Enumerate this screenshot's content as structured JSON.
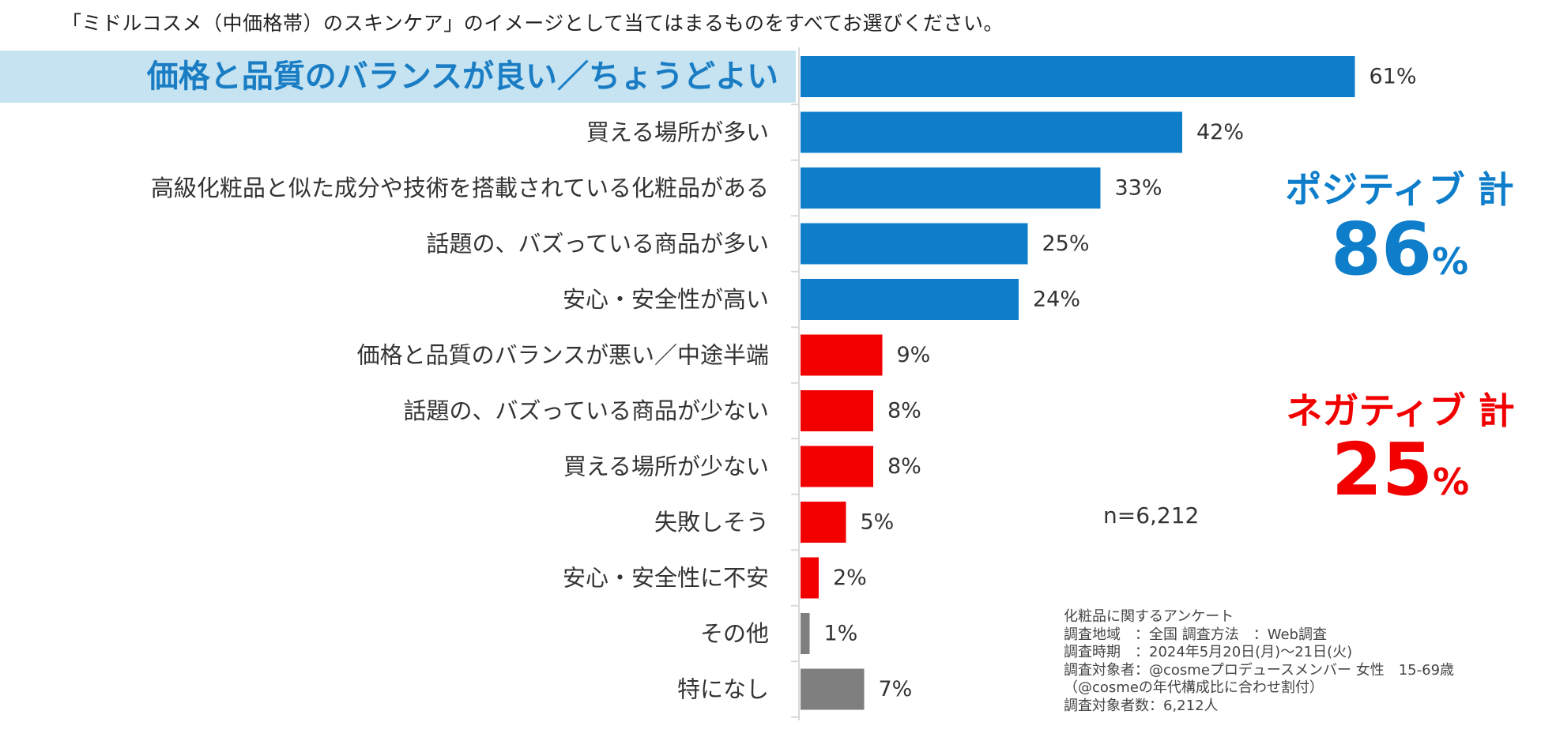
{
  "question": "「ミドルコスメ（中価格帯）のスキンケア」のイメージとして当てはまるものをすべてお選びください。",
  "colors": {
    "positive": "#0E7ECB",
    "negative": "#F20000",
    "neutral": "#7F7F7F",
    "highlight_bg": "#C5E3F1",
    "highlight_text": "#1A7DC4"
  },
  "chart_data": {
    "type": "bar",
    "orientation": "horizontal",
    "title": "「ミドルコスメ（中価格帯）のスキンケア」のイメージとして当てはまるものをすべてお選びください。",
    "unit": "%",
    "xlim": [
      0,
      61
    ],
    "categories": [
      "価格と品質のバランスが良い／ちょうどよい",
      "買える場所が多い",
      "高級化粧品と似た成分や技術を搭載されている化粧品がある",
      "話題の、バズっている商品が多い",
      "安心・安全性が高い",
      "価格と品質のバランスが悪い／中途半端",
      "話題の、バズっている商品が少ない",
      "買える場所が少ない",
      "失敗しそう",
      "安心・安全性に不安",
      "その他",
      "特になし"
    ],
    "values": [
      61,
      42,
      33,
      25,
      24,
      9,
      8,
      8,
      5,
      2,
      1,
      7
    ],
    "value_labels": [
      "61%",
      "42%",
      "33%",
      "25%",
      "24%",
      "9%",
      "8%",
      "8%",
      "5%",
      "2%",
      "1%",
      "7%"
    ],
    "groups": [
      "positive",
      "positive",
      "positive",
      "positive",
      "positive",
      "negative",
      "negative",
      "negative",
      "negative",
      "negative",
      "neutral",
      "neutral"
    ],
    "highlighted": [
      true,
      false,
      false,
      false,
      false,
      false,
      false,
      false,
      false,
      false,
      false,
      false
    ]
  },
  "totals": {
    "positive": {
      "label": "ポジティブ 計",
      "value": "86",
      "unit": "%"
    },
    "negative": {
      "label": "ネガティブ 計",
      "value": "25",
      "unit": "%"
    }
  },
  "sample": "n=6,212",
  "survey": {
    "title": "化粧品に関するアンケート",
    "area": "調査地域　：全国",
    "method": "調査方法　：Web調査",
    "period": "調査時期　：2024年5月20日(月)～21日(火)",
    "target": "調査対象者：@cosmeプロデュースメンバー 女性　15-69歳",
    "target_note": "（@cosmeの年代構成比に合わせ割付）",
    "count": "調査対象者数：6,212人"
  }
}
